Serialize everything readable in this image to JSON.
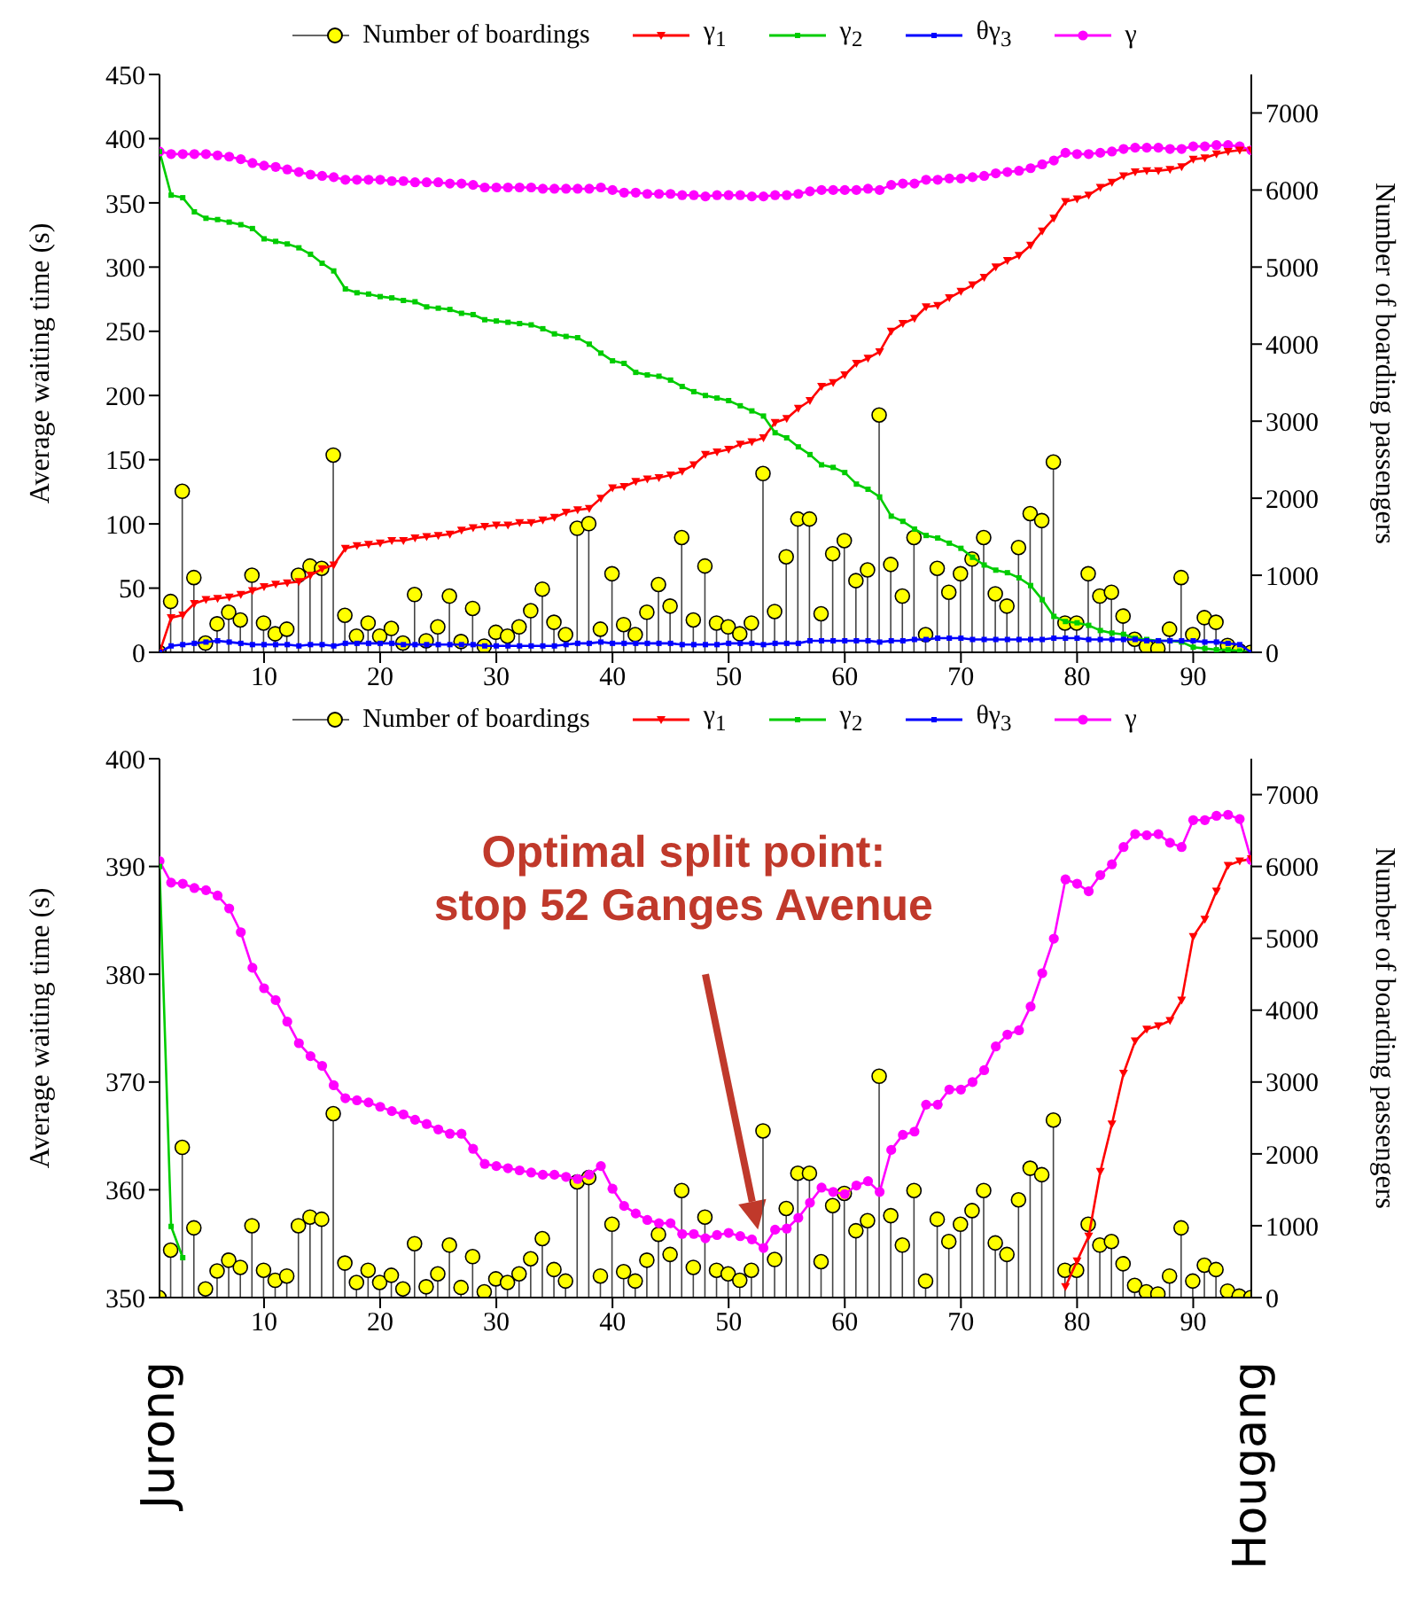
{
  "chart_data": [
    {
      "type": "line",
      "ylabel": "Average waiting time (s)",
      "y2label": "Number of boarding passengers",
      "legend": "top",
      "x": [
        1,
        2,
        3,
        4,
        5,
        6,
        7,
        8,
        9,
        10,
        11,
        12,
        13,
        14,
        15,
        16,
        17,
        18,
        19,
        20,
        21,
        22,
        23,
        24,
        25,
        26,
        27,
        28,
        29,
        30,
        31,
        32,
        33,
        34,
        35,
        36,
        37,
        38,
        39,
        40,
        41,
        42,
        43,
        44,
        45,
        46,
        47,
        48,
        49,
        50,
        51,
        52,
        53,
        54,
        55,
        56,
        57,
        58,
        59,
        60,
        61,
        62,
        63,
        64,
        65,
        66,
        67,
        68,
        69,
        70,
        71,
        72,
        73,
        74,
        75,
        76,
        77,
        78,
        79,
        80,
        81,
        82,
        83,
        84,
        85,
        86,
        87,
        88,
        89,
        90,
        91,
        92,
        93,
        94,
        95
      ],
      "xlim": [
        1,
        95
      ],
      "xticks": [
        10,
        20,
        30,
        40,
        50,
        60,
        70,
        80,
        90
      ],
      "ylim": [
        0,
        450
      ],
      "yticks": [
        0,
        50,
        100,
        150,
        200,
        250,
        300,
        350,
        400,
        450
      ],
      "y2lim": [
        0,
        7500
      ],
      "y2ticks": [
        0,
        1000,
        2000,
        3000,
        4000,
        5000,
        6000,
        7000
      ],
      "series": [
        {
          "name": "Number of boardings",
          "type": "lollipop",
          "axis": "y2",
          "color": "#ffff00",
          "marker": "circle",
          "values": [
            0,
            660,
            2090,
            970,
            120,
            370,
            520,
            420,
            1000,
            380,
            240,
            300,
            1000,
            1120,
            1090,
            2560,
            480,
            210,
            380,
            210,
            310,
            120,
            750,
            150,
            330,
            730,
            140,
            570,
            80,
            260,
            210,
            330,
            540,
            820,
            390,
            230,
            1610,
            1670,
            300,
            1020,
            360,
            230,
            520,
            880,
            600,
            1490,
            420,
            1120,
            380,
            330,
            240,
            380,
            2320,
            530,
            1240,
            1730,
            1730,
            500,
            1280,
            1450,
            930,
            1070,
            3080,
            1140,
            730,
            1490,
            230,
            1090,
            780,
            1020,
            1210,
            1490,
            760,
            600,
            1360,
            1800,
            1710,
            2470,
            380,
            380,
            1020,
            730,
            780,
            470,
            170,
            80,
            50,
            300,
            970,
            230,
            450,
            390,
            90,
            20,
            0
          ]
        },
        {
          "name": "γ$_{1}$",
          "color": "#ff0000",
          "marker": "triangle",
          "values": [
            0,
            27,
            29,
            38,
            41,
            42,
            43,
            45,
            48,
            51,
            53,
            54,
            55,
            60,
            65,
            68,
            81,
            83,
            84,
            85,
            87,
            87,
            89,
            90,
            91,
            92,
            95,
            97,
            98,
            99,
            99,
            101,
            101,
            103,
            105,
            109,
            111,
            112,
            120,
            128,
            129,
            133,
            135,
            136,
            138,
            141,
            146,
            154,
            156,
            158,
            162,
            164,
            167,
            179,
            182,
            190,
            196,
            207,
            210,
            216,
            225,
            229,
            234,
            250,
            256,
            260,
            269,
            270,
            276,
            281,
            286,
            292,
            300,
            305,
            309,
            317,
            328,
            338,
            351,
            353,
            356,
            362,
            366,
            371,
            374,
            375,
            375,
            376,
            378,
            384,
            385,
            388,
            390,
            391,
            391
          ]
        },
        {
          "name": "γ$_{2}$",
          "color": "#00cc00",
          "marker": "square",
          "values": [
            390,
            356,
            354,
            343,
            338,
            337,
            335,
            333,
            330,
            322,
            320,
            318,
            315,
            310,
            303,
            297,
            283,
            280,
            279,
            277,
            276,
            274,
            273,
            269,
            268,
            267,
            264,
            263,
            259,
            258,
            257,
            256,
            255,
            252,
            248,
            246,
            245,
            240,
            233,
            227,
            225,
            218,
            216,
            215,
            212,
            207,
            203,
            200,
            198,
            196,
            192,
            188,
            184,
            171,
            167,
            160,
            154,
            146,
            144,
            140,
            131,
            127,
            121,
            106,
            102,
            96,
            91,
            89,
            85,
            81,
            74,
            68,
            64,
            62,
            58,
            52,
            41,
            28,
            24,
            23,
            21,
            17,
            15,
            14,
            11,
            10,
            9,
            9,
            8,
            4,
            3,
            2,
            2,
            1,
            0
          ]
        },
        {
          "name": "θγ$_{3}$",
          "color": "#0000ff",
          "marker": "square",
          "values": [
            0,
            5,
            6,
            7,
            8,
            9,
            8,
            7,
            6,
            6,
            6,
            6,
            5,
            6,
            6,
            5,
            7,
            7,
            7,
            7,
            7,
            6,
            6,
            6,
            6,
            6,
            6,
            6,
            5,
            5,
            5,
            5,
            5,
            5,
            5,
            6,
            7,
            7,
            8,
            7,
            7,
            7,
            7,
            7,
            7,
            6,
            6,
            6,
            6,
            7,
            7,
            7,
            6,
            7,
            7,
            7,
            9,
            9,
            9,
            9,
            9,
            9,
            8,
            9,
            9,
            10,
            10,
            11,
            11,
            11,
            10,
            10,
            10,
            10,
            10,
            10,
            10,
            11,
            11,
            11,
            10,
            10,
            10,
            10,
            10,
            9,
            9,
            9,
            9,
            9,
            8,
            8,
            7,
            6,
            0
          ]
        },
        {
          "name": "γ",
          "color": "#ff00ff",
          "marker": "circle",
          "values": [
            390,
            388,
            388,
            388,
            388,
            387,
            386,
            384,
            381,
            379,
            378,
            376,
            374,
            372,
            371,
            370,
            368,
            368,
            368,
            368,
            367,
            367,
            366,
            366,
            366,
            365,
            365,
            364,
            362,
            362,
            362,
            362,
            362,
            361,
            361,
            361,
            361,
            361,
            362,
            360,
            358,
            358,
            357,
            357,
            357,
            356,
            356,
            355,
            356,
            356,
            356,
            355,
            355,
            356,
            356,
            357,
            359,
            360,
            360,
            360,
            360,
            361,
            360,
            364,
            365,
            365,
            368,
            368,
            369,
            369,
            370,
            371,
            373,
            374,
            375,
            377,
            380,
            383,
            389,
            388,
            388,
            389,
            390,
            392,
            393,
            393,
            393,
            392,
            392,
            394,
            394,
            395,
            395,
            394,
            391
          ]
        }
      ]
    },
    {
      "type": "line",
      "ylabel": "Average waiting time (s)",
      "y2label": "Number of boarding passengers",
      "legend": "top",
      "x": [
        1,
        2,
        3,
        4,
        5,
        6,
        7,
        8,
        9,
        10,
        11,
        12,
        13,
        14,
        15,
        16,
        17,
        18,
        19,
        20,
        21,
        22,
        23,
        24,
        25,
        26,
        27,
        28,
        29,
        30,
        31,
        32,
        33,
        34,
        35,
        36,
        37,
        38,
        39,
        40,
        41,
        42,
        43,
        44,
        45,
        46,
        47,
        48,
        49,
        50,
        51,
        52,
        53,
        54,
        55,
        56,
        57,
        58,
        59,
        60,
        61,
        62,
        63,
        64,
        65,
        66,
        67,
        68,
        69,
        70,
        71,
        72,
        73,
        74,
        75,
        76,
        77,
        78,
        79,
        80,
        81,
        82,
        83,
        84,
        85,
        86,
        87,
        88,
        89,
        90,
        91,
        92,
        93,
        94,
        95
      ],
      "xlim": [
        1,
        95
      ],
      "xticks": [
        10,
        20,
        30,
        40,
        50,
        60,
        70,
        80,
        90
      ],
      "ylim": [
        350,
        400
      ],
      "yticks": [
        350,
        360,
        370,
        380,
        390,
        400
      ],
      "y2lim": [
        0,
        7500
      ],
      "y2ticks": [
        0,
        1000,
        2000,
        3000,
        4000,
        5000,
        6000,
        7000
      ],
      "series": [
        {
          "name": "Number of boardings",
          "type": "lollipop",
          "axis": "y2",
          "color": "#ffff00",
          "marker": "circle",
          "values": [
            0,
            660,
            2090,
            970,
            120,
            370,
            520,
            420,
            1000,
            380,
            240,
            300,
            1000,
            1120,
            1090,
            2560,
            480,
            210,
            380,
            210,
            310,
            120,
            750,
            150,
            330,
            730,
            140,
            570,
            80,
            260,
            210,
            330,
            540,
            820,
            390,
            230,
            1610,
            1670,
            300,
            1020,
            360,
            230,
            520,
            880,
            600,
            1490,
            420,
            1120,
            380,
            330,
            240,
            380,
            2320,
            530,
            1240,
            1730,
            1730,
            500,
            1280,
            1450,
            930,
            1070,
            3080,
            1140,
            730,
            1490,
            230,
            1090,
            780,
            1020,
            1210,
            1490,
            760,
            600,
            1360,
            1800,
            1710,
            2470,
            380,
            380,
            1020,
            730,
            780,
            470,
            170,
            80,
            50,
            300,
            970,
            230,
            450,
            390,
            90,
            20,
            0
          ]
        },
        {
          "name": "γ$_{1}$",
          "color": "#ff0000",
          "marker": "triangle",
          "values": [
            null,
            null,
            null,
            null,
            null,
            null,
            null,
            null,
            null,
            null,
            null,
            null,
            null,
            null,
            null,
            null,
            null,
            null,
            null,
            null,
            null,
            null,
            null,
            null,
            null,
            null,
            null,
            null,
            null,
            null,
            null,
            null,
            null,
            null,
            null,
            null,
            null,
            null,
            null,
            null,
            null,
            null,
            null,
            null,
            null,
            null,
            null,
            null,
            null,
            null,
            null,
            null,
            null,
            null,
            null,
            null,
            null,
            null,
            null,
            null,
            null,
            null,
            null,
            null,
            null,
            null,
            null,
            null,
            null,
            null,
            null,
            null,
            null,
            null,
            null,
            null,
            null,
            null,
            351.0,
            353.4,
            355.7,
            361.7,
            366.1,
            370.8,
            373.8,
            374.9,
            375.2,
            375.7,
            377.6,
            383.5,
            385.1,
            387.7,
            390.1,
            390.5,
            390.7
          ]
        },
        {
          "name": "γ$_{2}$",
          "color": "#00cc00",
          "marker": "square",
          "values": [
            390.0,
            356.6,
            353.7,
            null,
            null,
            null,
            null,
            null,
            null,
            null,
            null,
            null,
            null,
            null,
            null,
            null,
            null,
            null,
            null,
            null,
            null,
            null,
            null,
            null,
            null,
            null,
            null,
            null,
            null,
            null,
            null,
            null,
            null,
            null,
            null,
            null,
            null,
            null,
            null,
            null,
            null,
            null,
            null,
            null,
            null,
            null,
            null,
            null,
            null,
            null,
            null,
            null,
            null,
            null,
            null,
            null,
            null,
            null,
            null,
            null,
            null,
            null,
            null,
            null,
            null,
            null,
            null,
            null,
            null,
            null,
            null,
            null,
            null,
            null,
            null,
            null,
            null,
            null,
            null,
            null,
            null,
            null,
            null,
            null,
            null,
            null,
            null,
            null,
            null,
            null,
            null,
            null,
            null,
            null,
            null
          ]
        },
        {
          "name": "θγ$_{3}$",
          "color": "#0000ff",
          "marker": "square",
          "values": [
            null,
            null,
            null,
            null,
            null,
            null,
            null,
            null,
            null,
            null,
            null,
            null,
            null,
            null,
            null,
            null,
            null,
            null,
            null,
            null,
            null,
            null,
            null,
            null,
            null,
            null,
            null,
            null,
            null,
            null,
            null,
            null,
            null,
            null,
            null,
            null,
            null,
            null,
            null,
            null,
            null,
            null,
            null,
            null,
            null,
            null,
            null,
            null,
            null,
            null,
            null,
            null,
            null,
            null,
            null,
            null,
            null,
            null,
            null,
            null,
            null,
            null,
            null,
            null,
            null,
            null,
            null,
            null,
            null,
            null,
            null,
            null,
            null,
            null,
            null,
            null,
            null,
            null,
            null,
            null,
            null,
            null,
            null,
            null,
            null,
            null,
            null,
            null,
            null,
            null,
            null,
            null,
            null,
            null,
            null
          ]
        },
        {
          "name": "γ",
          "color": "#ff00ff",
          "marker": "circle",
          "values": [
            390.5,
            388.5,
            388.4,
            388.0,
            387.8,
            387.3,
            386.1,
            383.9,
            380.6,
            378.7,
            377.6,
            375.6,
            373.6,
            372.4,
            371.5,
            369.7,
            368.5,
            368.3,
            368.1,
            367.7,
            367.3,
            367.0,
            366.5,
            366.1,
            365.6,
            365.2,
            365.2,
            363.8,
            362.4,
            362.2,
            362.0,
            361.8,
            361.6,
            361.4,
            361.4,
            361.2,
            361.0,
            361.4,
            362.2,
            360.1,
            358.5,
            357.8,
            357.2,
            356.9,
            356.9,
            355.9,
            355.9,
            355.5,
            355.8,
            356.0,
            355.7,
            355.4,
            354.6,
            356.3,
            356.4,
            357.4,
            358.8,
            360.2,
            359.8,
            359.6,
            360.4,
            360.8,
            359.8,
            363.7,
            365.1,
            365.4,
            367.9,
            367.9,
            369.3,
            369.3,
            370.0,
            371.1,
            373.3,
            374.4,
            374.8,
            377.0,
            380.1,
            383.3,
            388.8,
            388.4,
            387.7,
            389.2,
            390.2,
            391.8,
            393.0,
            392.9,
            393.0,
            392.2,
            391.8,
            394.3,
            394.3,
            394.7,
            394.8,
            394.4,
            390.6
          ]
        }
      ],
      "annotations": [
        "Optimal split point:\nstop 52 Ganges Avenue",
        "Jurong",
        "Hougang"
      ]
    }
  ]
}
